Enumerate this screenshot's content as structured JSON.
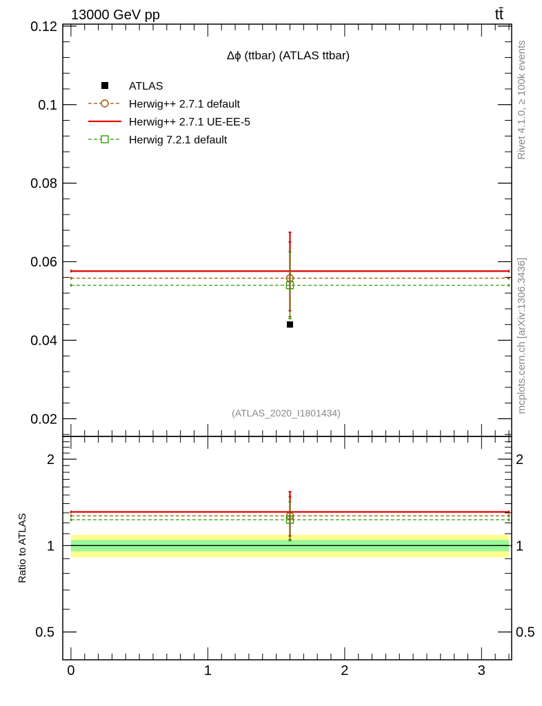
{
  "header": {
    "energy_label": "13000 GeV pp",
    "process_label": "tt̄"
  },
  "side_labels": {
    "rivet": "Rivet 4.1.0, ≥ 100k events",
    "mcplots": "mcplots.cern.ch [arXiv:1306.3436]"
  },
  "colors": {
    "atlas": "#000000",
    "herwigpp_default": "#a05000",
    "herwigpp_ueee5": "#e00000",
    "herwig7": "#2e9a00",
    "band_inner": "#98f898",
    "band_outer": "#fefe90"
  },
  "chart_data": [
    {
      "type": "line",
      "panel": "main",
      "title": "Δϕ (ttbar) (ATLAS ttbar)",
      "watermark": "(ATLAS_2020_I1801434)",
      "xlim": [
        -0.06,
        3.22
      ],
      "ylim": [
        0.0155,
        0.1205
      ],
      "y_ticks": [
        0.02,
        0.04,
        0.06,
        0.08,
        0.1,
        0.12
      ],
      "y_tick_labels": [
        "0.02",
        "0.04",
        "0.06",
        "0.08",
        "0.1",
        "0.12"
      ],
      "legend": [
        {
          "key": "atlas",
          "label": "ATLAS"
        },
        {
          "key": "herwigpp_default",
          "label": "Herwig++ 2.7.1 default"
        },
        {
          "key": "herwigpp_ueee5",
          "label": "Herwig++ 2.7.1 UE-EE-5"
        },
        {
          "key": "herwig7",
          "label": "Herwig 7.2.1 default"
        }
      ],
      "data_point": {
        "x": 1.6,
        "y": 0.044,
        "err": 0.0002
      },
      "series": [
        {
          "key": "herwigpp_default",
          "name": "Herwig++ 2.7.1 default",
          "style": "dashed",
          "marker": "circle",
          "x_range": [
            0,
            3.2
          ],
          "x_marker": 1.6,
          "value": 0.0558,
          "err_low": 0.0098,
          "err_high": 0.0092
        },
        {
          "key": "herwigpp_ueee5",
          "name": "Herwig++ 2.7.1 UE-EE-5",
          "style": "solid",
          "marker": "none",
          "x_range": [
            0,
            3.2
          ],
          "x_marker": 1.6,
          "value": 0.0576,
          "err_low": 0.0101,
          "err_high": 0.0099
        },
        {
          "key": "herwig7",
          "name": "Herwig 7.2.1 default",
          "style": "dashed",
          "marker": "square",
          "x_range": [
            0,
            3.2
          ],
          "x_marker": 1.6,
          "value": 0.054,
          "err_low": 0.0085,
          "err_high": 0.0085
        }
      ]
    },
    {
      "type": "line",
      "panel": "ratio",
      "ylabel": "Ratio to ATLAS",
      "xlim": [
        -0.06,
        3.22
      ],
      "y_scale": "log",
      "ylim": [
        0.4,
        2.4
      ],
      "y_ticks": [
        0.5,
        1,
        2
      ],
      "y_tick_labels": [
        "0.5",
        "1",
        "2"
      ],
      "x_ticks": [
        0,
        1,
        2,
        3
      ],
      "x_tick_labels": [
        "0",
        "1",
        "2",
        "3"
      ],
      "bands": [
        {
          "key": "band_outer",
          "low": 0.91,
          "high": 1.09
        },
        {
          "key": "band_inner",
          "low": 0.955,
          "high": 1.045
        }
      ],
      "series": [
        {
          "key": "herwigpp_default",
          "style": "dashed",
          "marker": "circle",
          "value": 1.27,
          "err_low": 1.05,
          "err_high": 1.48
        },
        {
          "key": "herwigpp_ueee5",
          "style": "solid",
          "marker": "none",
          "value": 1.31,
          "err_low": 1.08,
          "err_high": 1.54
        },
        {
          "key": "herwig7",
          "style": "dashed",
          "marker": "square",
          "value": 1.23,
          "err_low": 1.04,
          "err_high": 1.42
        }
      ]
    }
  ]
}
